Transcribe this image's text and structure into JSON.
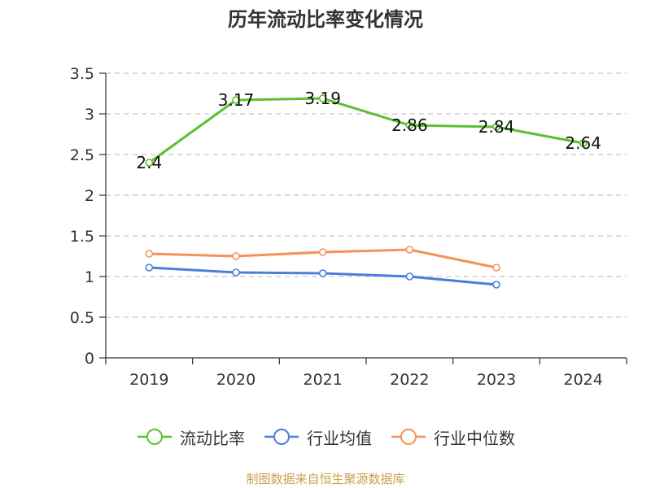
{
  "chart_data": {
    "type": "line",
    "title": "历年流动比率变化情况",
    "categories": [
      "2019",
      "2020",
      "2021",
      "2022",
      "2023",
      "2024"
    ],
    "ylim": [
      0,
      3.5
    ],
    "y_ticks": [
      "0",
      "0.5",
      "1",
      "1.5",
      "2",
      "2.5",
      "3",
      "3.5"
    ],
    "grid": true,
    "legend_position": "bottom",
    "series": [
      {
        "name": "流动比率",
        "color": "#5ac12e",
        "values": [
          2.4,
          3.17,
          3.19,
          2.86,
          2.84,
          2.64
        ],
        "labels": [
          "2.4",
          "3.17",
          "3.19",
          "2.86",
          "2.84",
          "2.64"
        ]
      },
      {
        "name": "行业均值",
        "color": "#4a7fdc",
        "values": [
          1.11,
          1.05,
          1.04,
          1.0,
          0.9,
          null
        ]
      },
      {
        "name": "行业中位数",
        "color": "#f4915a",
        "values": [
          1.28,
          1.25,
          1.3,
          1.33,
          1.11,
          null
        ]
      }
    ]
  },
  "source": "制图数据来自恒生聚源数据库"
}
